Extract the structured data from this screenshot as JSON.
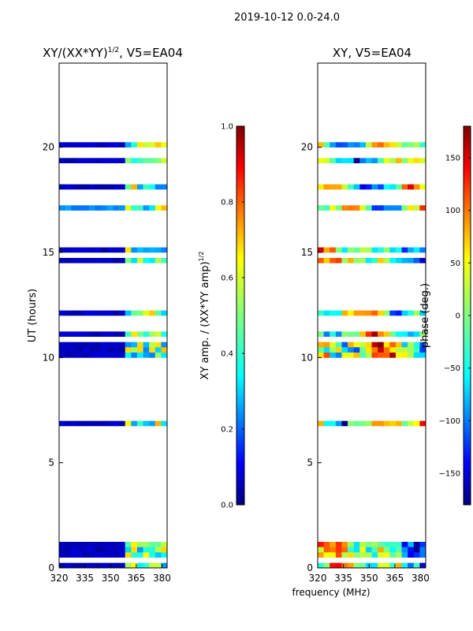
{
  "suptitle": "2019-10-12 0.0-24.0",
  "colors": {
    "jet": [
      "#00007f",
      "#0000ff",
      "#007fff",
      "#00ffff",
      "#7fff7f",
      "#ffff00",
      "#ff7f00",
      "#ff0000",
      "#7f0000"
    ]
  },
  "chart_data": [
    {
      "type": "heatmap",
      "title_main": "XY/(XX*YY)",
      "title_sup": "1/2",
      "title_tail": ", V5=EA04",
      "ylabel": "UT (hours)",
      "x_ticks": [
        320,
        335,
        350,
        365,
        380
      ],
      "x_tick_labels": [
        "320",
        "335",
        "350",
        "365",
        "380"
      ],
      "xlim": [
        320,
        383
      ],
      "y_ticks": [
        0,
        5,
        10,
        15,
        20
      ],
      "y_tick_labels": [
        "0",
        "5",
        "10",
        "15",
        "20"
      ],
      "ylim": [
        0,
        24
      ],
      "colorbar": {
        "label_main": "XY amp. / (XX*YY amp)",
        "label_sup": "1/2",
        "ticks": [
          0.0,
          0.2,
          0.4,
          0.6,
          0.8,
          1.0
        ],
        "tick_labels": [
          "0.0",
          "0.2",
          "0.4",
          "0.6",
          "0.8",
          "1.0"
        ],
        "range": [
          0,
          1
        ]
      },
      "band_pattern": "low values below ~358 MHz, higher (0.3-0.7) above ~358 MHz"
    },
    {
      "type": "heatmap",
      "title": "XY, V5=EA04",
      "xlabel": "frequency (MHz)",
      "x_ticks": [
        320,
        335,
        350,
        365,
        380
      ],
      "x_tick_labels": [
        "320",
        "335",
        "350",
        "365",
        "380"
      ],
      "xlim": [
        320,
        383
      ],
      "y_ticks": [
        0,
        5,
        10,
        15,
        20
      ],
      "y_tick_labels": [
        "0",
        "5",
        "10",
        "15",
        "20"
      ],
      "ylim": [
        0,
        24
      ],
      "colorbar": {
        "label": "phase (deg.)",
        "ticks": [
          -150,
          -100,
          -50,
          0,
          50,
          100,
          150
        ],
        "tick_labels": [
          "−150",
          "−100",
          "−50",
          "0",
          "50",
          "100",
          "150"
        ],
        "range": [
          -180,
          180
        ]
      },
      "band_pattern": "phase varies across full range; blank rows where data flagged"
    }
  ],
  "flagged_rows_hours": [
    0.3,
    0.45,
    1.3,
    1.45,
    1.7,
    2.0,
    2.35,
    2.5,
    2.85,
    3.25,
    3.5,
    3.95,
    4.2,
    4.4,
    4.6,
    4.75,
    4.95,
    5.05,
    5.25,
    5.6,
    5.75,
    6.25,
    6.35,
    6.7,
    7.05,
    7.2,
    7.5,
    7.85,
    8.05,
    8.5,
    8.75,
    9.15,
    9.35,
    9.45,
    9.75,
    10.95,
    11.35,
    11.65,
    11.9,
    12.5,
    12.8,
    13.0,
    13.3,
    13.45,
    13.7,
    14.0,
    14.35,
    14.8,
    15.35,
    15.5,
    15.85,
    16.0,
    16.2,
    16.5,
    16.7,
    16.9,
    17.5,
    17.65,
    17.95,
    18.3,
    18.6,
    18.9,
    19.2,
    19.6,
    19.95,
    20.3,
    20.55,
    20.85,
    21.15,
    21.5,
    21.8,
    22.15,
    22.45,
    22.6,
    22.85,
    23.1,
    23.35,
    23.5,
    23.75
  ]
}
